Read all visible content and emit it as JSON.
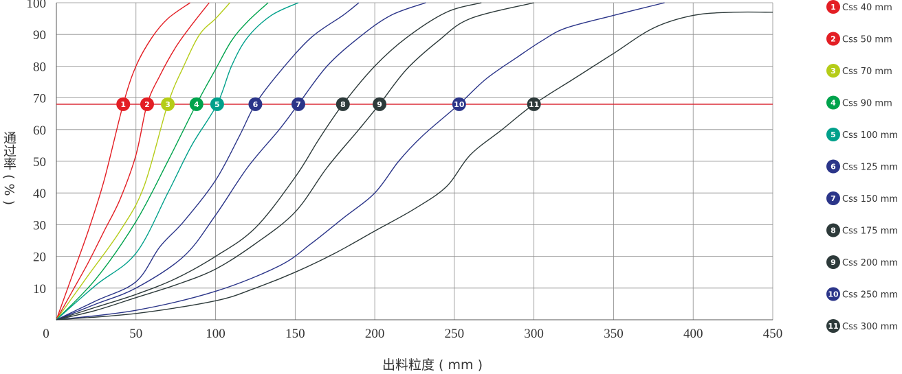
{
  "chart_data": {
    "type": "line",
    "xlabel": "出料粒度 ( mm )",
    "ylabel": "通过率 ( % )",
    "xlim": [
      0,
      450
    ],
    "ylim": [
      0,
      100
    ],
    "x_ticks": [
      "0",
      "50",
      "100",
      "150",
      "200",
      "250",
      "300",
      "350",
      "400",
      "450"
    ],
    "y_ticks": [
      "10",
      "20",
      "30",
      "40",
      "50",
      "60",
      "70",
      "80",
      "90",
      "100"
    ],
    "grid": true,
    "legend_position": "right",
    "reference_line": {
      "y": 68,
      "color": "#d9232d"
    },
    "series": [
      {
        "id": "1",
        "name": "Css 40 mm",
        "color": "#e31e24",
        "marker_x": 42,
        "points": [
          [
            0,
            0
          ],
          [
            10,
            14
          ],
          [
            20,
            28
          ],
          [
            30,
            44
          ],
          [
            42,
            68
          ],
          [
            50,
            80
          ],
          [
            60,
            89
          ],
          [
            70,
            95
          ],
          [
            84,
            100
          ]
        ]
      },
      {
        "id": "2",
        "name": "Css 50 mm",
        "color": "#e31e24",
        "marker_x": 57,
        "points": [
          [
            0,
            0
          ],
          [
            10,
            9
          ],
          [
            20,
            18
          ],
          [
            30,
            28
          ],
          [
            40,
            38
          ],
          [
            50,
            52
          ],
          [
            57,
            68
          ],
          [
            65,
            77
          ],
          [
            75,
            86
          ],
          [
            85,
            93
          ],
          [
            96,
            100
          ]
        ]
      },
      {
        "id": "3",
        "name": "Css 70 mm",
        "color": "#b5cc18",
        "marker_x": 70,
        "points": [
          [
            0,
            0
          ],
          [
            20,
            14
          ],
          [
            40,
            28
          ],
          [
            55,
            42
          ],
          [
            70,
            68
          ],
          [
            80,
            80
          ],
          [
            90,
            90
          ],
          [
            100,
            95
          ],
          [
            109,
            100
          ]
        ]
      },
      {
        "id": "4",
        "name": "Css 90 mm",
        "color": "#00a34c",
        "marker_x": 88,
        "points": [
          [
            0,
            0
          ],
          [
            25,
            13
          ],
          [
            50,
            31
          ],
          [
            70,
            50
          ],
          [
            88,
            68
          ],
          [
            100,
            79
          ],
          [
            110,
            88
          ],
          [
            120,
            94
          ],
          [
            133,
            100
          ]
        ]
      },
      {
        "id": "5",
        "name": "Css 100 mm",
        "color": "#00a08b",
        "marker_x": 101,
        "points": [
          [
            0,
            0
          ],
          [
            25,
            11
          ],
          [
            50,
            21
          ],
          [
            70,
            40
          ],
          [
            85,
            55
          ],
          [
            101,
            68
          ],
          [
            110,
            80
          ],
          [
            120,
            89
          ],
          [
            135,
            96
          ],
          [
            152,
            100
          ]
        ]
      },
      {
        "id": "6",
        "name": "Css 125 mm",
        "color": "#2b3589",
        "marker_x": 125,
        "points": [
          [
            0,
            0
          ],
          [
            25,
            6
          ],
          [
            50,
            12
          ],
          [
            65,
            23
          ],
          [
            80,
            31
          ],
          [
            100,
            44
          ],
          [
            115,
            58
          ],
          [
            125,
            68
          ],
          [
            140,
            78
          ],
          [
            160,
            89
          ],
          [
            180,
            96
          ],
          [
            190,
            100
          ]
        ]
      },
      {
        "id": "7",
        "name": "Css 150 mm",
        "color": "#2b3589",
        "marker_x": 152,
        "points": [
          [
            0,
            0
          ],
          [
            25,
            5
          ],
          [
            50,
            10
          ],
          [
            80,
            20
          ],
          [
            100,
            33
          ],
          [
            120,
            48
          ],
          [
            140,
            60
          ],
          [
            152,
            68
          ],
          [
            170,
            80
          ],
          [
            190,
            89
          ],
          [
            210,
            96
          ],
          [
            232,
            100
          ]
        ]
      },
      {
        "id": "8",
        "name": "Css 175 mm",
        "color": "#2d3a3a",
        "marker_x": 180,
        "points": [
          [
            0,
            0
          ],
          [
            25,
            4
          ],
          [
            50,
            8
          ],
          [
            75,
            13
          ],
          [
            100,
            20
          ],
          [
            125,
            29
          ],
          [
            150,
            45
          ],
          [
            165,
            57
          ],
          [
            180,
            68
          ],
          [
            200,
            80
          ],
          [
            220,
            89
          ],
          [
            245,
            97
          ],
          [
            267,
            100
          ]
        ]
      },
      {
        "id": "9",
        "name": "Css 200 mm",
        "color": "#2d3a3a",
        "marker_x": 203,
        "points": [
          [
            0,
            0
          ],
          [
            25,
            3
          ],
          [
            50,
            7
          ],
          [
            75,
            11
          ],
          [
            100,
            16
          ],
          [
            125,
            24
          ],
          [
            150,
            34
          ],
          [
            170,
            48
          ],
          [
            190,
            60
          ],
          [
            203,
            68
          ],
          [
            220,
            79
          ],
          [
            240,
            88
          ],
          [
            260,
            95
          ],
          [
            300,
            100
          ]
        ]
      },
      {
        "id": "10",
        "name": "Css 250 mm",
        "color": "#2b3589",
        "marker_x": 253,
        "points": [
          [
            0,
            0
          ],
          [
            50,
            3
          ],
          [
            100,
            9
          ],
          [
            140,
            17
          ],
          [
            160,
            24
          ],
          [
            180,
            32
          ],
          [
            200,
            40
          ],
          [
            215,
            50
          ],
          [
            230,
            58
          ],
          [
            253,
            68
          ],
          [
            270,
            76
          ],
          [
            290,
            83
          ],
          [
            305,
            88
          ],
          [
            320,
            92
          ],
          [
            350,
            96
          ],
          [
            382,
            100
          ]
        ]
      },
      {
        "id": "11",
        "name": "Css 300 mm",
        "color": "#2d3a3a",
        "marker_x": 300,
        "points": [
          [
            0,
            0
          ],
          [
            50,
            2
          ],
          [
            100,
            6
          ],
          [
            125,
            10
          ],
          [
            150,
            15
          ],
          [
            175,
            21
          ],
          [
            200,
            28
          ],
          [
            225,
            35
          ],
          [
            245,
            42
          ],
          [
            260,
            52
          ],
          [
            280,
            60
          ],
          [
            300,
            68
          ],
          [
            325,
            76
          ],
          [
            350,
            84
          ],
          [
            375,
            92
          ],
          [
            400,
            96
          ],
          [
            425,
            97
          ],
          [
            450,
            97
          ]
        ]
      }
    ]
  }
}
